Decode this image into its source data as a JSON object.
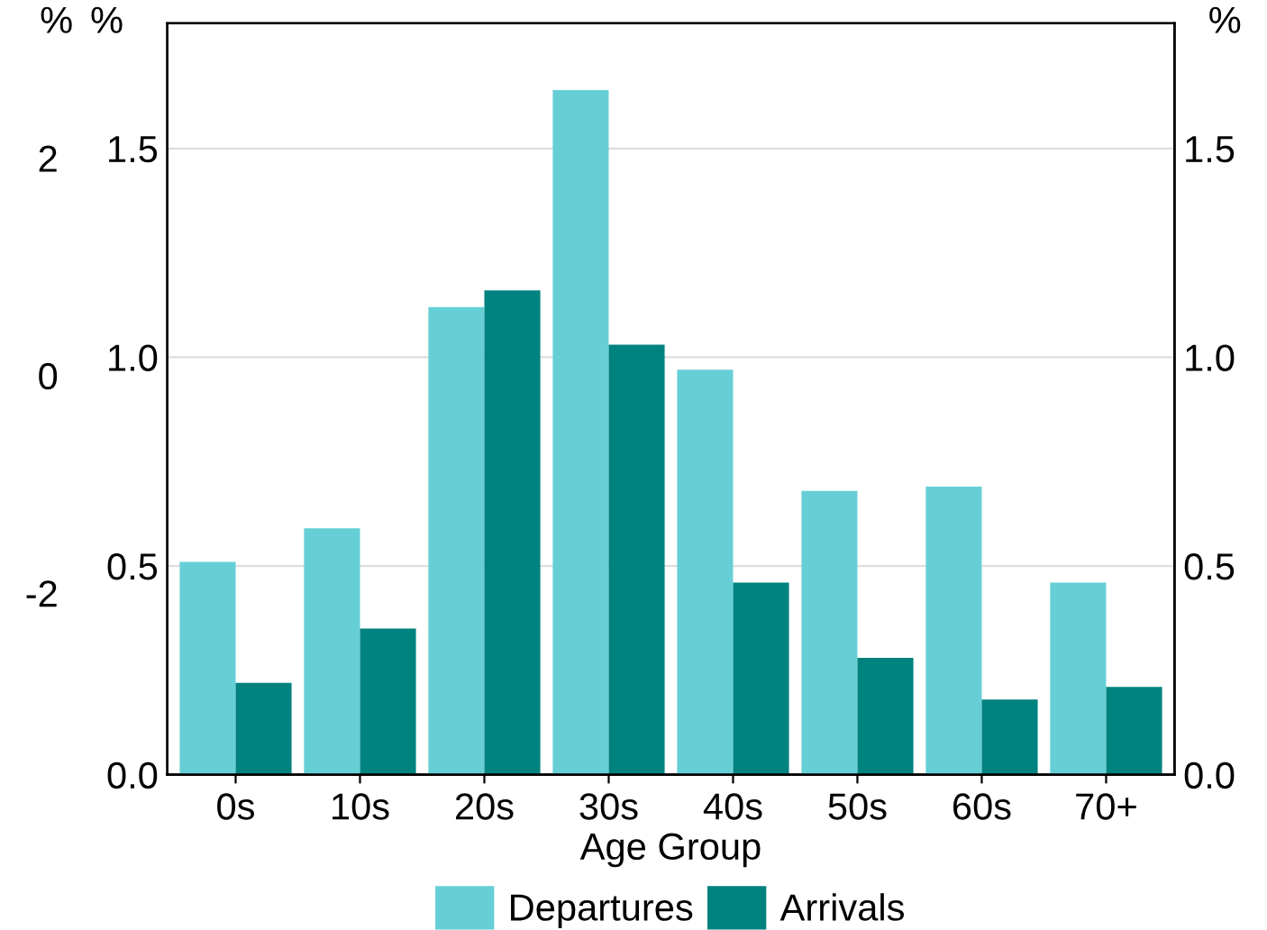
{
  "chart_data": {
    "type": "bar",
    "xlabel": "Age Group",
    "ylabel": "%",
    "y2label": "%",
    "y3label": "%",
    "categories": [
      "0s",
      "10s",
      "20s",
      "30s",
      "40s",
      "50s",
      "60s",
      "70+"
    ],
    "series": [
      {
        "name": "Departures",
        "color": "#66cfd6",
        "values": [
          0.51,
          0.59,
          1.12,
          1.64,
          0.97,
          0.68,
          0.69,
          0.46
        ]
      },
      {
        "name": "Arrivals",
        "color": "#00827f",
        "values": [
          0.22,
          0.35,
          1.16,
          1.03,
          0.46,
          0.28,
          0.18,
          0.21
        ]
      }
    ],
    "ylim": [
      0,
      1.8
    ],
    "yticks": [
      {
        "value": 0,
        "label": "0.0"
      },
      {
        "value": 0.5,
        "label": "0.5"
      },
      {
        "value": 1,
        "label": "1.0"
      },
      {
        "value": 1.5,
        "label": "1.5"
      }
    ],
    "y2lim": [
      0,
      1.8
    ],
    "y2ticks": [
      {
        "value": 0,
        "label": "0.0"
      },
      {
        "value": 0.5,
        "label": "0.5"
      },
      {
        "value": 1,
        "label": "1.0"
      },
      {
        "value": 1.5,
        "label": "1.5"
      }
    ],
    "y3lim": [
      -3.67,
      3.24
    ],
    "y3ticks": [
      -2,
      0,
      2
    ],
    "grid": "y",
    "legend": "bottom"
  }
}
